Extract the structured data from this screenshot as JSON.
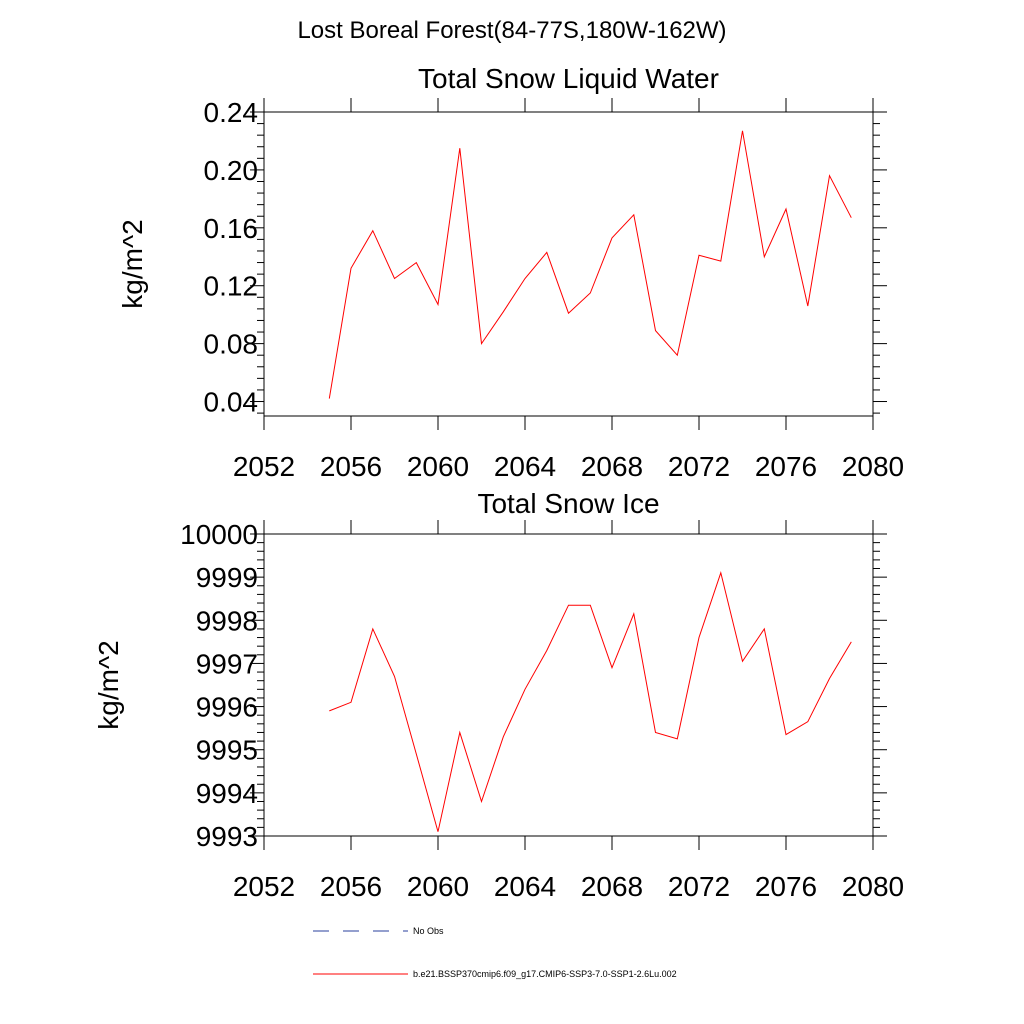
{
  "page_title": "Lost Boreal Forest(84-77S,180W-162W)",
  "colors": {
    "series": "#ff0000",
    "obs": "#2a3f9c",
    "axis": "#000000"
  },
  "legend": {
    "obs_label": "No Obs",
    "model_label": "b.e21.BSSP370cmip6.f09_g17.CMIP6-SSP3-7.0-SSP1-2.6Lu.002"
  },
  "chart_data": [
    {
      "type": "line",
      "title": "Total Snow Liquid Water",
      "ylabel": "kg/m^2",
      "xlabel": "",
      "xlim": [
        2052,
        2080
      ],
      "ylim": [
        0.03,
        0.24
      ],
      "xticks": [
        2052,
        2056,
        2060,
        2064,
        2068,
        2072,
        2076,
        2080
      ],
      "yticks": [
        0.04,
        0.08,
        0.12,
        0.16,
        0.2,
        0.24
      ],
      "ytick_labels": [
        "0.04",
        "0.08",
        "0.12",
        "0.16",
        "0.20",
        "0.24"
      ],
      "x": [
        2055,
        2056,
        2057,
        2058,
        2059,
        2060,
        2061,
        2062,
        2063,
        2064,
        2065,
        2066,
        2067,
        2068,
        2069,
        2070,
        2071,
        2072,
        2073,
        2074,
        2075,
        2076,
        2077,
        2078,
        2079
      ],
      "series": [
        {
          "values": [
            0.042,
            0.132,
            0.158,
            0.125,
            0.136,
            0.107,
            0.215,
            0.08,
            0.102,
            0.125,
            0.143,
            0.101,
            0.115,
            0.153,
            0.169,
            0.089,
            0.072,
            0.141,
            0.137,
            0.227,
            0.14,
            0.173,
            0.106,
            0.196,
            0.167
          ]
        }
      ]
    },
    {
      "type": "line",
      "title": "Total Snow Ice",
      "ylabel": "kg/m^2",
      "xlabel": "",
      "xlim": [
        2052,
        2080
      ],
      "ylim": [
        9993,
        10000
      ],
      "xticks": [
        2052,
        2056,
        2060,
        2064,
        2068,
        2072,
        2076,
        2080
      ],
      "yticks": [
        9993,
        9994,
        9995,
        9996,
        9997,
        9998,
        9999,
        10000
      ],
      "ytick_labels": [
        "9993",
        "9994",
        "9995",
        "9996",
        "9997",
        "9998",
        "9999",
        "10000"
      ],
      "x": [
        2055,
        2056,
        2057,
        2058,
        2059,
        2060,
        2061,
        2062,
        2063,
        2064,
        2065,
        2066,
        2067,
        2068,
        2069,
        2070,
        2071,
        2072,
        2073,
        2074,
        2075,
        2076,
        2077,
        2078,
        2079
      ],
      "series": [
        {
          "values": [
            9995.9,
            9996.1,
            9997.8,
            9996.7,
            9994.9,
            9993.1,
            9995.4,
            9993.8,
            9995.3,
            9996.4,
            9997.3,
            9998.35,
            9998.35,
            9996.9,
            9998.15,
            9995.4,
            9995.25,
            9997.6,
            9999.1,
            9997.05,
            9997.8,
            9995.35,
            9995.65,
            9996.65,
            9997.5
          ]
        }
      ]
    }
  ]
}
